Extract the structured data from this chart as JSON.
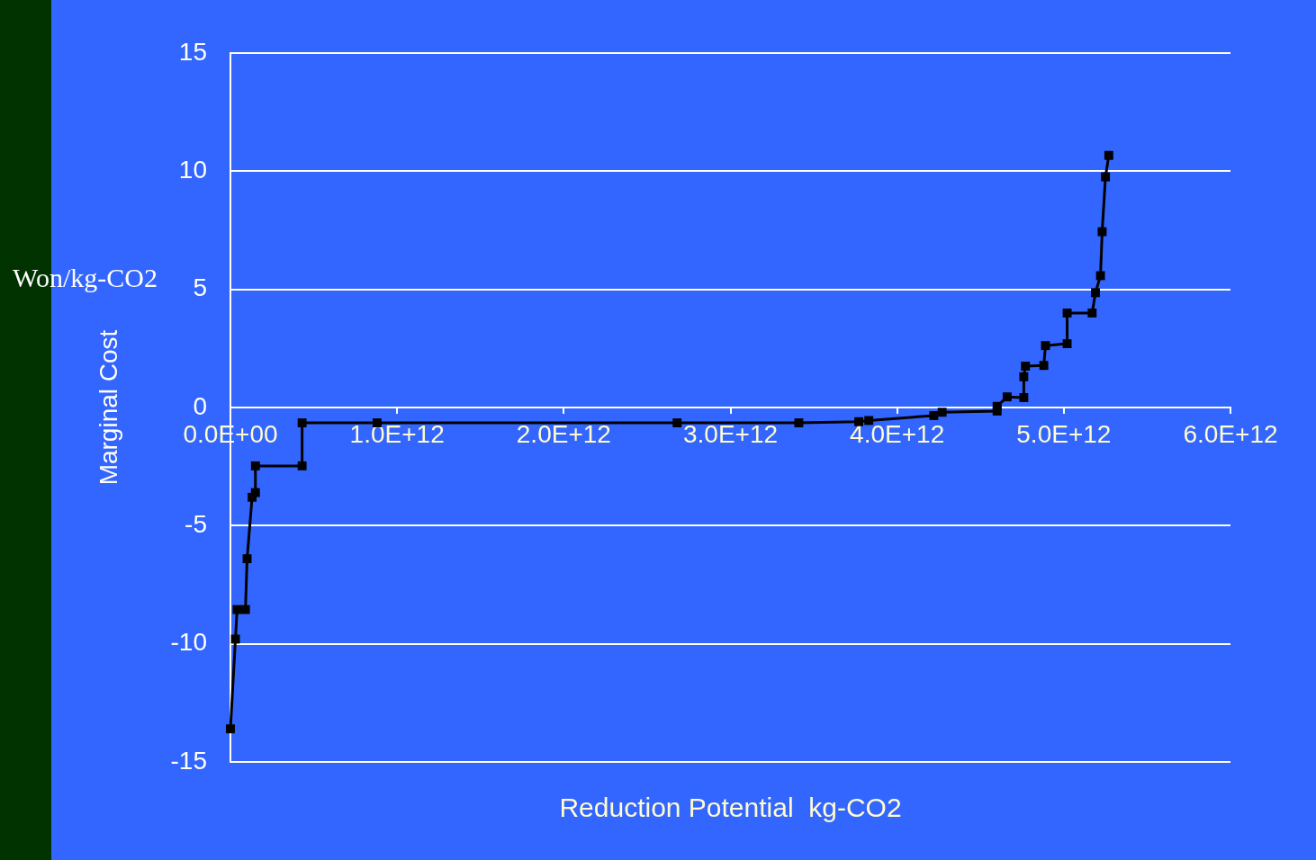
{
  "chart_data": {
    "type": "line",
    "xlabel": "Reduction Potential  kg-CO2",
    "ylabel": "Marginal Cost",
    "annotations": [
      "Won/kg-CO2"
    ],
    "xlim": [
      0,
      6000000000000.0
    ],
    "xticks": [
      {
        "value": 0,
        "label": "0.0E+00"
      },
      {
        "value": 1000000000000.0,
        "label": "1.0E+12"
      },
      {
        "value": 2000000000000.0,
        "label": "2.0E+12"
      },
      {
        "value": 3000000000000.0,
        "label": "3.0E+12"
      },
      {
        "value": 4000000000000.0,
        "label": "4.0E+12"
      },
      {
        "value": 5000000000000.0,
        "label": "5.0E+12"
      },
      {
        "value": 6000000000000.0,
        "label": "6.0E+12"
      }
    ],
    "ylim": [
      -15,
      15
    ],
    "yticks": [
      -15,
      -10,
      -5,
      0,
      5,
      10,
      15
    ],
    "grid": "y",
    "legend": false,
    "marker": "square",
    "line_style": "solid",
    "series": [
      {
        "color": "#000000",
        "x": [
          0,
          30000000000.0,
          40000000000.0,
          90000000000.0,
          100000000000.0,
          130000000000.0,
          150000000000.0,
          150000000000.0,
          430000000000.0,
          430000000000.0,
          880000000000.0,
          2680000000000.0,
          3410000000000.0,
          3770000000000.0,
          3830000000000.0,
          4220000000000.0,
          4270000000000.0,
          4600000000000.0,
          4600000000000.0,
          4660000000000.0,
          4760000000000.0,
          4760000000000.0,
          4770000000000.0,
          4880000000000.0,
          4890000000000.0,
          5020000000000.0,
          5020000000000.0,
          5170000000000.0,
          5190000000000.0,
          5220000000000.0,
          5230000000000.0,
          5250000000000.0,
          5270000000000.0
        ],
        "values": [
          -13.6,
          -9.8,
          -8.55,
          -8.55,
          -6.4,
          -3.8,
          -3.6,
          -2.47,
          -2.47,
          -0.65,
          -0.65,
          -0.65,
          -0.65,
          -0.6,
          -0.55,
          -0.34,
          -0.2,
          -0.15,
          0.05,
          0.45,
          0.42,
          1.3,
          1.75,
          1.78,
          2.62,
          2.7,
          4.0,
          4.0,
          4.86,
          5.58,
          7.44,
          9.76,
          10.67
        ]
      }
    ]
  }
}
